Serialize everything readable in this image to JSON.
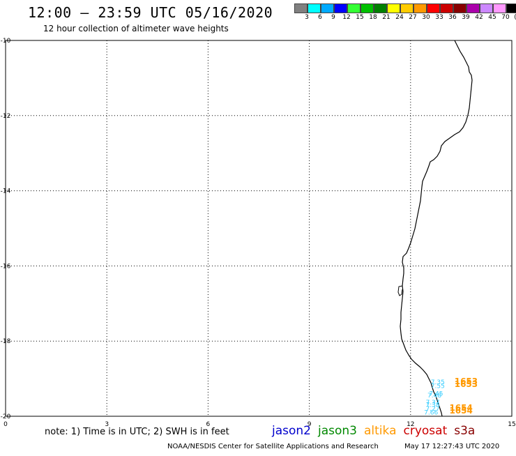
{
  "header": {
    "title": "12:00 – 23:59 UTC 05/16/2020",
    "subtitle": "12 hour collection of altimeter wave heights"
  },
  "legend": {
    "colors": [
      "#808080",
      "#00ffff",
      "#00aaff",
      "#0000ff",
      "#33ff33",
      "#00c000",
      "#008000",
      "#ffff00",
      "#ffcc00",
      "#ff9900",
      "#ff0000",
      "#cc0000",
      "#880000",
      "#aa00aa",
      "#cc88ff",
      "#ff99ff",
      "#000000"
    ],
    "ticks": [
      "3",
      "6",
      "9",
      "12",
      "15",
      "18",
      "21",
      "24",
      "27",
      "30",
      "33",
      "36",
      "39",
      "42",
      "45",
      "70",
      "(ft)"
    ]
  },
  "map": {
    "lon_range": [
      0,
      15
    ],
    "lat_range": [
      -20,
      -10
    ],
    "x_ticks": [
      "0",
      "3",
      "6",
      "9",
      "12",
      "15"
    ],
    "y_ticks": [
      "-10",
      "-12",
      "-14",
      "-16",
      "-18",
      "-20"
    ],
    "grid": true,
    "coastline_color": "#000000",
    "swh_labels": [
      {
        "text": "7.35",
        "lon": 12.6,
        "lat": -19.15,
        "color": "#33ccff"
      },
      {
        "text": "7.55",
        "lon": 12.6,
        "lat": -19.25,
        "color": "#33ccff"
      },
      {
        "text": "7.45",
        "lon": 12.55,
        "lat": -19.45,
        "color": "#33ccff"
      },
      {
        "text": "7.48",
        "lon": 12.5,
        "lat": -19.5,
        "color": "#33ccff"
      },
      {
        "text": "7.37",
        "lon": 12.45,
        "lat": -19.68,
        "color": "#33ccff"
      },
      {
        "text": "7.38",
        "lon": 12.45,
        "lat": -19.75,
        "color": "#33ccff"
      },
      {
        "text": "7.27",
        "lon": 12.45,
        "lat": -19.85,
        "color": "#33ccff"
      },
      {
        "text": "7.66",
        "lon": 12.4,
        "lat": -19.95,
        "color": "#33ccff"
      }
    ],
    "time_labels": [
      {
        "text": "1653",
        "lon": 13.3,
        "lat": -19.15,
        "color": "#ff9900"
      },
      {
        "text": "1653",
        "lon": 13.3,
        "lat": -19.22,
        "color": "#ff9900"
      },
      {
        "text": "1654",
        "lon": 13.15,
        "lat": -19.85,
        "color": "#ff9900"
      },
      {
        "text": "1654",
        "lon": 13.15,
        "lat": -19.93,
        "color": "#ff9900"
      }
    ]
  },
  "footer": {
    "note": "note: 1) Time is in UTC; 2) SWH is in feet",
    "satellites": [
      {
        "name": "jason2",
        "color": "#0000cc"
      },
      {
        "name": "jason3",
        "color": "#008800"
      },
      {
        "name": "altika",
        "color": "#ff9900"
      },
      {
        "name": "cryosat",
        "color": "#cc0000"
      },
      {
        "name": "s3a",
        "color": "#880000"
      }
    ],
    "credit": "NOAA/NESDIS Center for Satellite Applications and Research",
    "timestamp": "May 17 12:27:43 UTC 2020"
  }
}
